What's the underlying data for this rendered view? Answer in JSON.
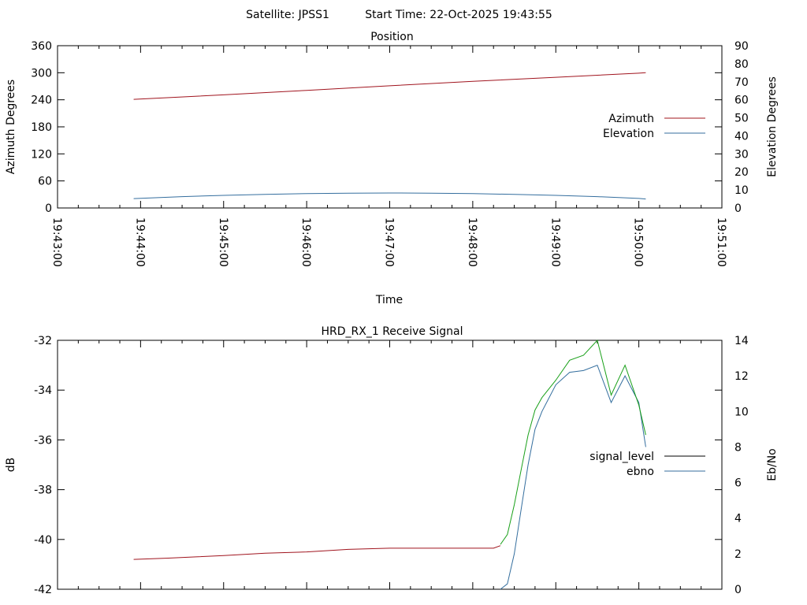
{
  "header": {
    "satellite_label": "Satellite: JPSS1",
    "start_time_label": "Start Time: 22-Oct-2025 19:43:55"
  },
  "chart_data": [
    {
      "type": "line",
      "title": "Position",
      "xlabel": "Time",
      "ylabel": "Azimuth Degrees",
      "y2label": "Elevation Degrees",
      "x_ticks": [
        "19:43:00",
        "19:44:00",
        "19:45:00",
        "19:46:00",
        "19:47:00",
        "19:48:00",
        "19:49:00",
        "19:50:00",
        "19:51:00"
      ],
      "xlim": [
        "19:43:00",
        "19:51:00"
      ],
      "ylim": [
        0,
        360
      ],
      "y_ticks": [
        0,
        60,
        120,
        180,
        240,
        300,
        360
      ],
      "y2lim": [
        0,
        90
      ],
      "y2_ticks": [
        0,
        10,
        20,
        30,
        40,
        50,
        60,
        70,
        80,
        90
      ],
      "grid": false,
      "legend": "right",
      "series": [
        {
          "name": "Azimuth",
          "axis": "y",
          "color": "#a0141e",
          "x": [
            "19:43:55",
            "19:45:00",
            "19:46:00",
            "19:47:00",
            "19:48:00",
            "19:49:00",
            "19:50:00",
            "19:50:05"
          ],
          "y": [
            241,
            251,
            261,
            271,
            281,
            290,
            299,
            300
          ]
        },
        {
          "name": "Elevation",
          "axis": "y2",
          "color": "#346e9e",
          "x": [
            "19:43:55",
            "19:44:30",
            "19:45:00",
            "19:45:30",
            "19:46:00",
            "19:46:30",
            "19:47:00",
            "19:47:30",
            "19:48:00",
            "19:48:30",
            "19:49:00",
            "19:49:30",
            "19:50:00",
            "19:50:05"
          ],
          "y": [
            5.2,
            6.3,
            7.0,
            7.5,
            8.0,
            8.2,
            8.3,
            8.2,
            8.0,
            7.5,
            7.0,
            6.3,
            5.3,
            5.0
          ]
        }
      ]
    },
    {
      "type": "line",
      "title": "HRD_RX_1 Receive Signal",
      "ylabel": "dB",
      "y2label": "Eb/No",
      "xlim": [
        "19:43:00",
        "19:51:00"
      ],
      "ylim": [
        -42,
        -32
      ],
      "y_ticks": [
        -42,
        -40,
        -38,
        -36,
        -34,
        -32
      ],
      "y2lim": [
        0,
        14
      ],
      "y2_ticks": [
        0,
        2,
        4,
        6,
        8,
        10,
        12,
        14
      ],
      "grid": false,
      "legend": "right",
      "series": [
        {
          "name": "signal_level",
          "axis": "y",
          "color": "#000000",
          "x": [],
          "y": []
        },
        {
          "name": "ebno",
          "axis": "y2",
          "color": "#346e9e",
          "x": [
            "19:48:20",
            "19:48:25",
            "19:48:30",
            "19:48:35",
            "19:48:40",
            "19:48:45",
            "19:48:50",
            "19:49:00",
            "19:49:10",
            "19:49:20",
            "19:49:30",
            "19:49:40",
            "19:49:50",
            "19:50:00",
            "19:50:05"
          ],
          "y": [
            0.0,
            0.3,
            2.0,
            4.5,
            7.0,
            9.0,
            10.0,
            11.5,
            12.2,
            12.3,
            12.6,
            10.5,
            12.0,
            10.5,
            8.0
          ]
        },
        {
          "name": "",
          "axis": "y",
          "color": "#a0141e",
          "x": [
            "19:43:55",
            "19:44:20",
            "19:44:40",
            "19:45:00",
            "19:45:30",
            "19:46:00",
            "19:46:30",
            "19:47:00",
            "19:47:30",
            "19:48:00",
            "19:48:15",
            "19:48:20"
          ],
          "y": [
            -40.8,
            -40.75,
            -40.7,
            -40.65,
            -40.55,
            -40.5,
            -40.4,
            -40.35,
            -40.35,
            -40.35,
            -40.35,
            -40.25
          ]
        },
        {
          "name": "",
          "axis": "y",
          "color": "#19a019",
          "x": [
            "19:48:20",
            "19:48:25",
            "19:48:30",
            "19:48:35",
            "19:48:40",
            "19:48:45",
            "19:48:50",
            "19:49:00",
            "19:49:10",
            "19:49:20",
            "19:49:30",
            "19:49:40",
            "19:49:50",
            "19:50:00",
            "19:50:05"
          ],
          "y": [
            -40.2,
            -39.8,
            -38.6,
            -37.2,
            -35.8,
            -34.8,
            -34.3,
            -33.6,
            -32.8,
            -32.6,
            -32.0,
            -34.2,
            -33.0,
            -34.6,
            -35.8
          ]
        }
      ]
    }
  ]
}
